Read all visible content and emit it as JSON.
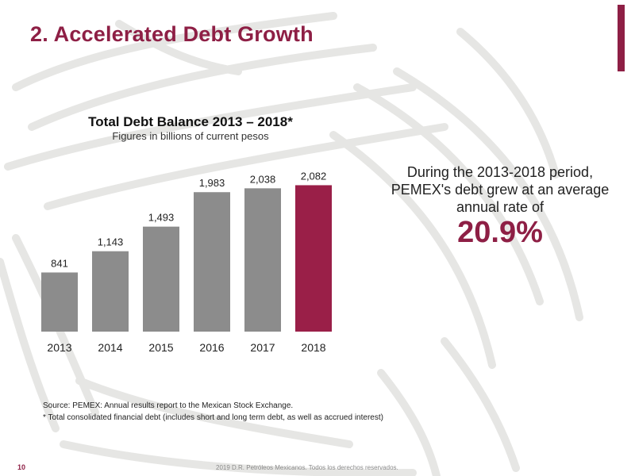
{
  "slide": {
    "title": "2. Accelerated Debt Growth",
    "accent_color": "#8e1f45",
    "page_number": "10",
    "copyright": "2019 D.R. Petróleos Mexicanos. Todos los derechos reservados."
  },
  "chart_data": {
    "type": "bar",
    "title": "Total Debt Balance 2013 – 2018*",
    "subtitle": "Figures in billions of current pesos",
    "categories": [
      "2013",
      "2014",
      "2015",
      "2016",
      "2017",
      "2018"
    ],
    "values": [
      841,
      1143,
      1493,
      1983,
      2038,
      2082
    ],
    "data_labels": [
      "841",
      "1,143",
      "1,493",
      "1,983",
      "2,038",
      "2,082"
    ],
    "ylim": [
      0,
      2200
    ],
    "grid": false,
    "colors": {
      "default": "#8c8c8c",
      "highlight": "#9a1f48"
    },
    "highlight_index": 5
  },
  "callout": {
    "text": "During the 2013-2018 period, PEMEX's debt grew at an average annual rate of",
    "value": "20.9%"
  },
  "notes": {
    "source": "Source: PEMEX: Annual results report to the Mexican Stock Exchange.",
    "footnote": "* Total consolidated financial debt (includes short and long term debt, as well as accrued interest)"
  }
}
